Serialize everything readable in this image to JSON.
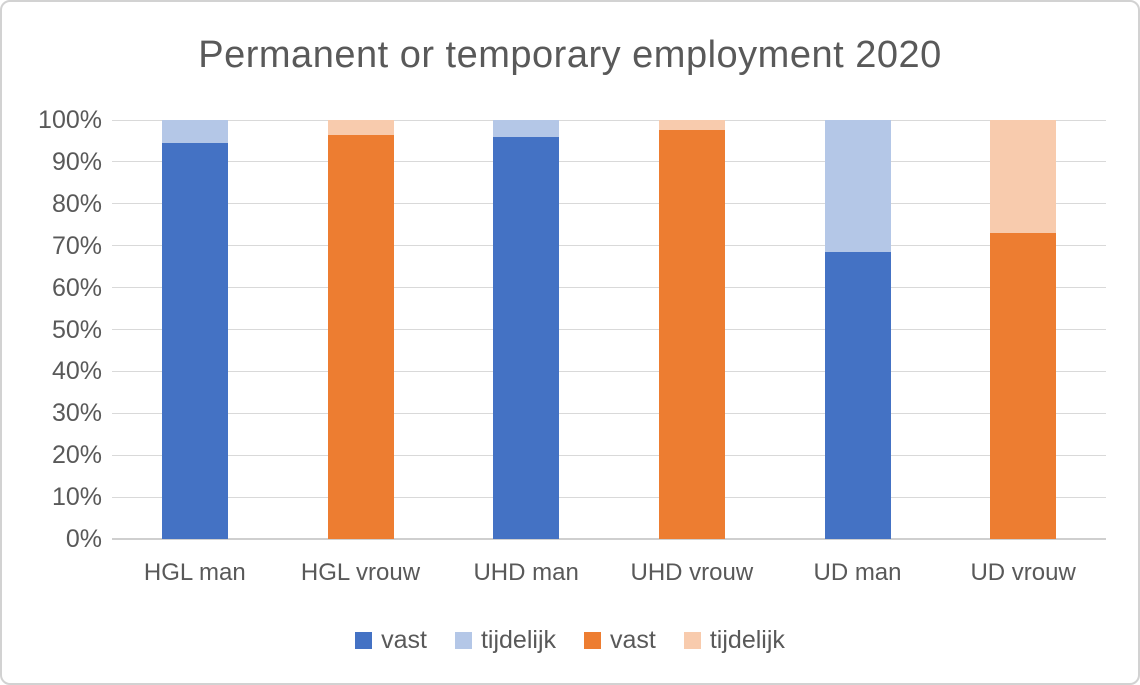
{
  "chart_data": {
    "type": "bar",
    "subtype": "stacked-percent-column",
    "title": "Permanent or temporary employment 2020",
    "categories": [
      "HGL man",
      "HGL vrouw",
      "UHD man",
      "UHD vrouw",
      "UD man",
      "UD vrouw"
    ],
    "series": [
      {
        "name": "vast",
        "color": "#4472C4",
        "values": [
          94.5,
          0,
          96,
          0,
          68.5,
          0
        ]
      },
      {
        "name": "tijdelijk",
        "color": "#B4C7E7",
        "values": [
          5.5,
          0,
          4,
          0,
          31.5,
          0
        ]
      },
      {
        "name": "vast",
        "color": "#ED7D31",
        "values": [
          0,
          96.5,
          0,
          97.5,
          0,
          73
        ]
      },
      {
        "name": "tijdelijk",
        "color": "#F8CBAD",
        "values": [
          0,
          3.5,
          0,
          2.5,
          0,
          27
        ]
      }
    ],
    "xlabel": "",
    "ylabel": "",
    "y_axis": {
      "min": 0,
      "max": 100,
      "step": 10,
      "tick_labels": [
        "0%",
        "10%",
        "20%",
        "30%",
        "40%",
        "50%",
        "60%",
        "70%",
        "80%",
        "90%",
        "100%"
      ]
    },
    "grid": "horizontal",
    "legend": {
      "position": "bottom",
      "entries": [
        {
          "label": "vast",
          "color": "#4472C4"
        },
        {
          "label": "tijdelijk",
          "color": "#B4C7E7"
        },
        {
          "label": "vast",
          "color": "#ED7D31"
        },
        {
          "label": "tijdelijk",
          "color": "#F8CBAD"
        }
      ]
    },
    "colors": {
      "gridline": "#D9D9D9",
      "axis_text": "#595959",
      "title_text": "#595959",
      "background": "#FFFFFF",
      "frame_border": "#D2D2D2"
    }
  }
}
